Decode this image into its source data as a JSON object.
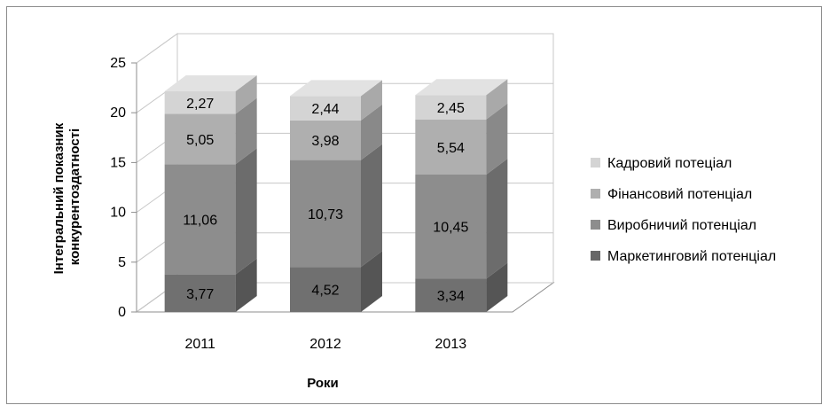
{
  "chart_data": {
    "type": "bar",
    "stacked": true,
    "style": "3d",
    "categories": [
      "2011",
      "2012",
      "2013"
    ],
    "series": [
      {
        "name": "Маркетинговий потенціал",
        "values": [
          3.77,
          4.52,
          3.34
        ],
        "labels": [
          "3,77",
          "4,52",
          "3,34"
        ]
      },
      {
        "name": "Виробничий потенціал",
        "values": [
          11.06,
          10.73,
          10.45
        ],
        "labels": [
          "11,06",
          "10,73",
          "10,45"
        ]
      },
      {
        "name": "Фінансовий потенціал",
        "values": [
          5.05,
          3.98,
          5.54
        ],
        "labels": [
          "5,05",
          "3,98",
          "5,54"
        ]
      },
      {
        "name": "Кадровий потеціал",
        "values": [
          2.27,
          2.44,
          2.45
        ],
        "labels": [
          "2,27",
          "2,44",
          "2,45"
        ]
      }
    ],
    "yticks": [
      "0",
      "5",
      "10",
      "15",
      "20",
      "25"
    ],
    "ylim": [
      0,
      25
    ],
    "xlabel": "Роки",
    "ylabel_lines": [
      "Інтегральний показник",
      "конкурентоздатності"
    ],
    "grid": true,
    "legend_position": "right",
    "colors": {
      "series_front": [
        "#707070",
        "#8d8d8d",
        "#afafaf",
        "#d4d4d4"
      ],
      "series_side": [
        "#555555",
        "#6c6c6c",
        "#898989",
        "#a9a9a9"
      ],
      "series_top": [
        "#7e7e7e",
        "#a0a0a0",
        "#c3c3c3",
        "#e2e2e2"
      ],
      "legend": [
        "#676767",
        "#8d8d8d",
        "#afafaf",
        "#d4d4d4"
      ],
      "grid": "#c8c8c8",
      "axis": "#8c8c8c",
      "text": "#000000"
    }
  }
}
